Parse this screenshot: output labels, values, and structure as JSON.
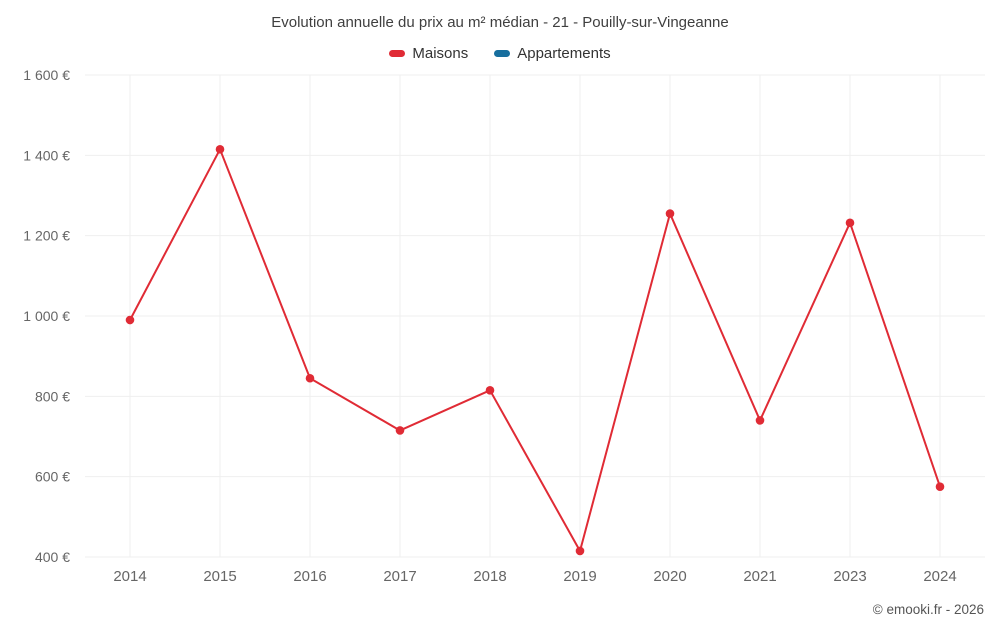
{
  "footer": {
    "copyright": "© emooki.fr - 2026"
  },
  "chart_data": {
    "type": "line",
    "title": "Evolution annuelle du prix au m² médian - 21 - Pouilly-sur-Vingeanne",
    "categories": [
      "2014",
      "2015",
      "2016",
      "2017",
      "2018",
      "2019",
      "2020",
      "2021",
      "2023",
      "2024"
    ],
    "series": [
      {
        "name": "Maisons",
        "color": "#e02b35",
        "values": [
          990,
          1415,
          845,
          715,
          815,
          415,
          1255,
          740,
          1232,
          575
        ]
      },
      {
        "name": "Appartements",
        "color": "#176e9e",
        "values": []
      }
    ],
    "xlabel": "",
    "ylabel": "",
    "ylim": [
      400,
      1600
    ],
    "yticks": [
      400,
      600,
      800,
      1000,
      1200,
      1400,
      1600
    ],
    "ytick_labels": [
      "400 €",
      "600 €",
      "800 €",
      "1 000 €",
      "1 200 €",
      "1 400 €",
      "1 600 €"
    ],
    "grid": true,
    "grid_color": "#efefef",
    "axis_text_color": "#666666",
    "legend_position": "top"
  }
}
